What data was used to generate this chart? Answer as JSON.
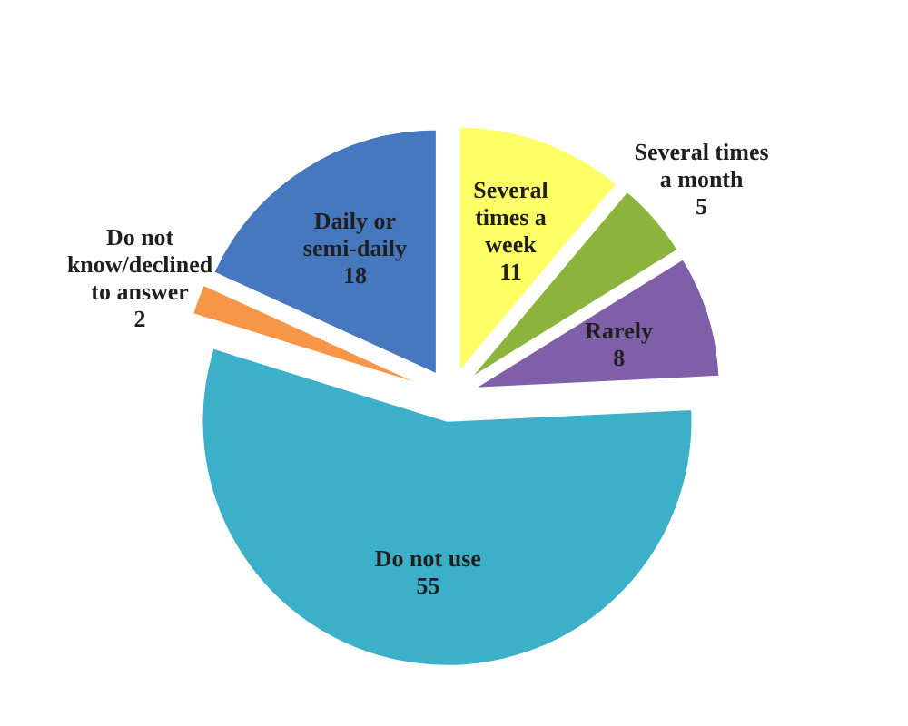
{
  "chart_data": {
    "type": "pie",
    "categories": [
      "Several times a week",
      "Several times a month",
      "Rarely",
      "Do not use",
      "Do not know/declined to answer",
      "Daily or semi-daily"
    ],
    "values": [
      11,
      5,
      8,
      55,
      2,
      18
    ],
    "colors": [
      "#ffff66",
      "#8cb43c",
      "#7f5fa8",
      "#3cb0c8",
      "#f79646",
      "#4678c0"
    ],
    "data_labels": true,
    "legend": false
  }
}
